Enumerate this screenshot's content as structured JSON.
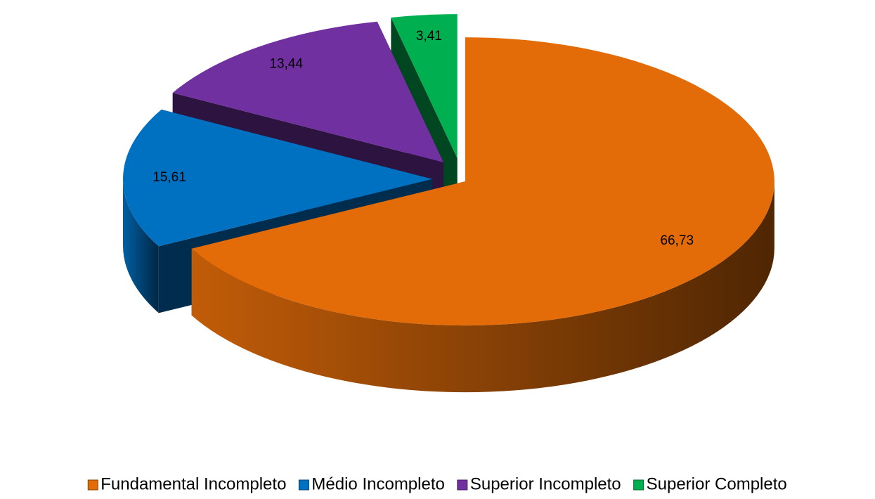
{
  "chart_data": {
    "type": "pie3d",
    "categories": [
      "Fundamental Incompleto",
      "Médio Incompleto",
      "Superior Incompleto",
      "Superior Completo"
    ],
    "values": [
      66.73,
      15.61,
      13.44,
      3.41
    ],
    "value_labels": [
      "66,73",
      "15,61",
      "13,44",
      "3,41"
    ],
    "colors": [
      "#E36C09",
      "#0070C0",
      "#7030A0",
      "#00B050"
    ],
    "legend": "bottom"
  }
}
